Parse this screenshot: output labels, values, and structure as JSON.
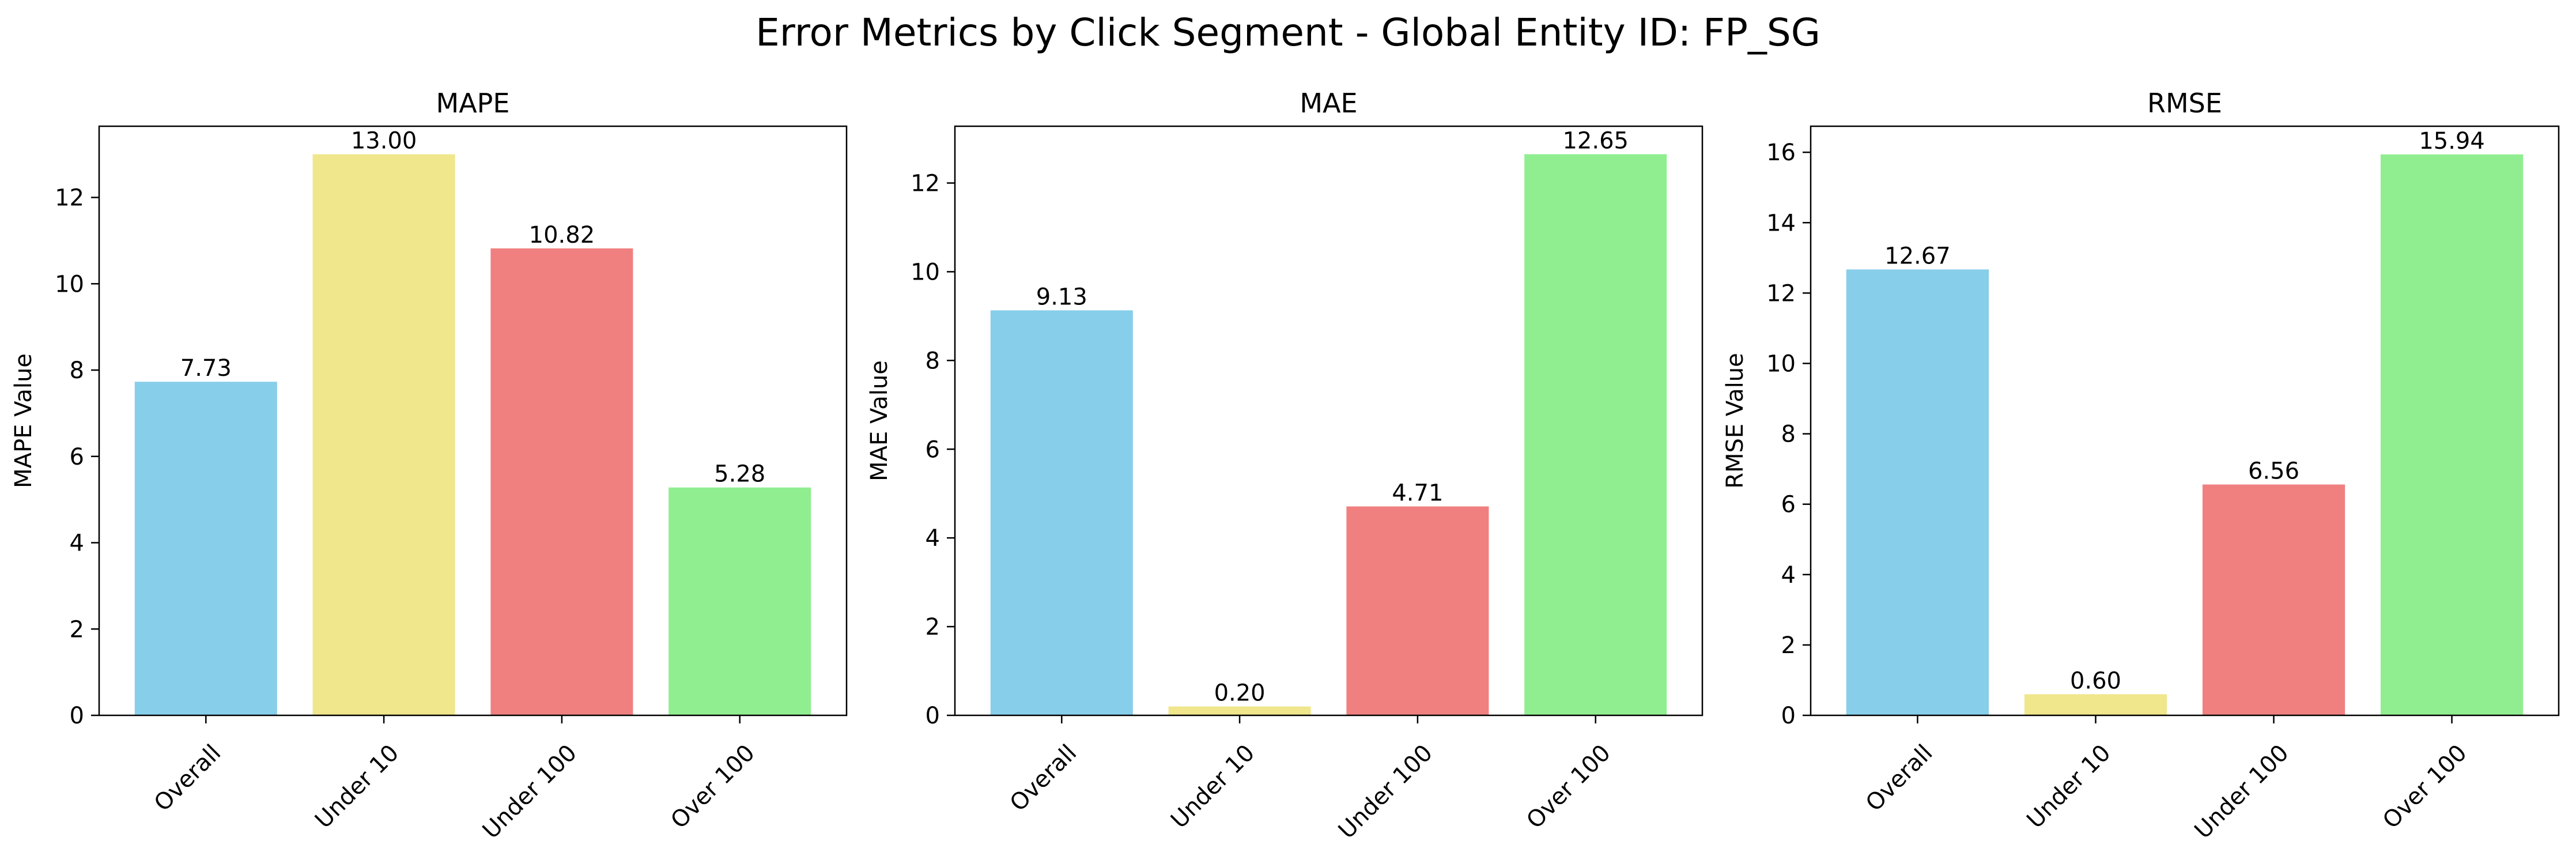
{
  "figure": {
    "title": "Error Metrics by Click Segment - Global Entity ID: FP_SG"
  },
  "colors": {
    "Overall": "#87ceeb",
    "Under 10": "#f0e68c",
    "Under 100": "#f08080",
    "Over 100": "#90ee90"
  },
  "chart_data": [
    {
      "type": "bar",
      "title": "MAPE",
      "ylabel": "MAPE Value",
      "xlabel": "",
      "categories": [
        "Overall",
        "Under 10",
        "Under 100",
        "Over 100"
      ],
      "values": [
        7.73,
        13.0,
        10.82,
        5.28
      ],
      "value_labels": [
        "7.73",
        "13.00",
        "10.82",
        "5.28"
      ],
      "ylim": [
        0,
        13.65
      ],
      "yticks": [
        0,
        2,
        4,
        6,
        8,
        10,
        12
      ],
      "grid": false,
      "legend": "none"
    },
    {
      "type": "bar",
      "title": "MAE",
      "ylabel": "MAE Value",
      "xlabel": "",
      "categories": [
        "Overall",
        "Under 10",
        "Under 100",
        "Over 100"
      ],
      "values": [
        9.13,
        0.2,
        4.71,
        12.65
      ],
      "value_labels": [
        "9.13",
        "0.20",
        "4.71",
        "12.65"
      ],
      "ylim": [
        0,
        13.28
      ],
      "yticks": [
        0,
        2,
        4,
        6,
        8,
        10,
        12
      ],
      "grid": false,
      "legend": "none"
    },
    {
      "type": "bar",
      "title": "RMSE",
      "ylabel": "RMSE Value",
      "xlabel": "",
      "categories": [
        "Overall",
        "Under 10",
        "Under 100",
        "Over 100"
      ],
      "values": [
        12.67,
        0.6,
        6.56,
        15.94
      ],
      "value_labels": [
        "12.67",
        "0.60",
        "6.56",
        "15.94"
      ],
      "ylim": [
        0,
        16.74
      ],
      "yticks": [
        0,
        2,
        4,
        6,
        8,
        10,
        12,
        14,
        16
      ],
      "grid": false,
      "legend": "none"
    }
  ]
}
